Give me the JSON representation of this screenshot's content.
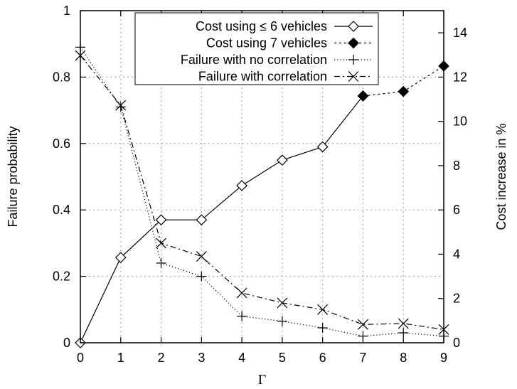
{
  "chart_data": {
    "type": "line",
    "x_label": "Γ",
    "y_label_left": "Failure probability",
    "y_label_right": "Cost increase in %",
    "x_range": [
      0,
      9
    ],
    "y_left_range": [
      0,
      1
    ],
    "y_right_range": [
      0,
      15
    ],
    "x_ticks": [
      0,
      1,
      2,
      3,
      4,
      5,
      6,
      7,
      8,
      9
    ],
    "y_left_ticks": [
      0,
      0.2,
      0.4,
      0.6,
      0.8,
      1
    ],
    "y_left_tick_labels": [
      "0",
      "0.2",
      "0.4",
      "0.6",
      "0.8",
      "1"
    ],
    "y_right_ticks": [
      0,
      2,
      4,
      6,
      8,
      10,
      12,
      14
    ],
    "grid": true,
    "legend_position": "top-right",
    "series": [
      {
        "name": "Cost using ≤ 6 vehicles",
        "axis": "right",
        "marker": "diamond-open",
        "line": "solid",
        "x": [
          0,
          1,
          2,
          3,
          4,
          5,
          6,
          7
        ],
        "y": [
          0,
          3.85,
          5.55,
          5.55,
          7.1,
          8.25,
          8.85,
          11.15
        ]
      },
      {
        "name": "Cost using 7 vehicles",
        "axis": "right",
        "marker": "diamond-filled",
        "line": "dashed",
        "x": [
          7,
          8,
          9
        ],
        "y": [
          11.15,
          11.35,
          12.5
        ]
      },
      {
        "name": "Failure with no correlation",
        "axis": "left",
        "marker": "plus",
        "line": "dotted",
        "x": [
          0,
          1,
          2,
          3,
          4,
          5,
          6,
          7,
          8,
          9
        ],
        "y": [
          0.89,
          0.71,
          0.24,
          0.2,
          0.08,
          0.065,
          0.045,
          0.02,
          0.03,
          0.02
        ]
      },
      {
        "name": "Failure with correlation",
        "axis": "left",
        "marker": "cross",
        "line": "dashdot",
        "x": [
          0,
          1,
          2,
          3,
          4,
          5,
          6,
          7,
          8,
          9
        ],
        "y": [
          0.865,
          0.715,
          0.3,
          0.26,
          0.15,
          0.12,
          0.1,
          0.055,
          0.058,
          0.04
        ]
      }
    ]
  }
}
